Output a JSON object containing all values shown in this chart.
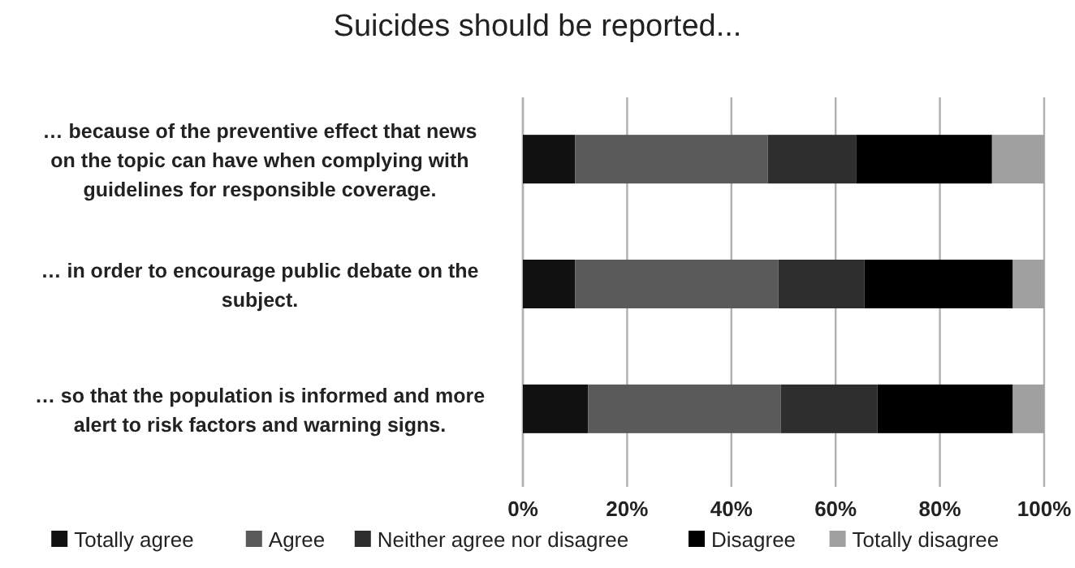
{
  "chart_data": {
    "type": "bar",
    "orientation": "horizontal",
    "stacked": true,
    "title": "Suicides should be reported...",
    "categories": [
      "… because of the preventive effect that news on the topic can have when complying with guidelines for responsible coverage.",
      "… in order to encourage public debate on the subject.",
      "… so that the population is informed and more alert to risk factors and warning signs."
    ],
    "series": [
      {
        "name": "Totally agree",
        "color": "#111111",
        "values": [
          10,
          10,
          12.5
        ]
      },
      {
        "name": "Agree",
        "color": "#5a5a5a",
        "values": [
          37,
          39,
          37
        ]
      },
      {
        "name": "Neither agree nor disagree",
        "color": "#2e2e2e",
        "values": [
          17,
          16.5,
          18.5
        ]
      },
      {
        "name": "Disagree",
        "color": "#000000",
        "values": [
          26,
          28.5,
          26
        ]
      },
      {
        "name": "Totally disagree",
        "color": "#a0a0a0",
        "values": [
          10,
          6,
          6
        ]
      }
    ],
    "xlim": [
      0,
      100
    ],
    "xticks": [
      {
        "value": 0,
        "label": "0%"
      },
      {
        "value": 20,
        "label": "20%"
      },
      {
        "value": 40,
        "label": "40%"
      },
      {
        "value": 60,
        "label": "60%"
      },
      {
        "value": 80,
        "label": "80%"
      },
      {
        "value": 100,
        "label": "100%"
      }
    ],
    "grid": "x",
    "legend": "bottom"
  }
}
